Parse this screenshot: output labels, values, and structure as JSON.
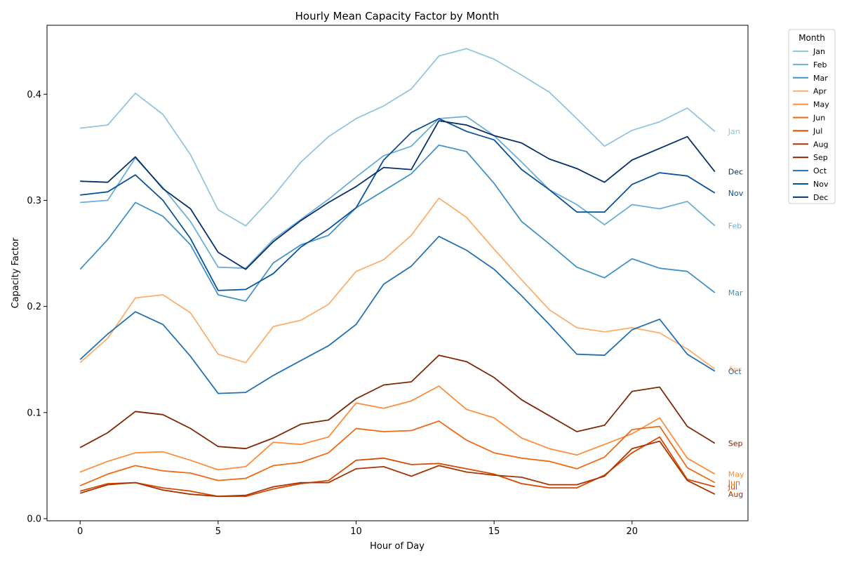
{
  "chart_data": {
    "type": "line",
    "title": "Hourly Mean Capacity Factor by Month",
    "xlabel": "Hour of Day",
    "ylabel": "Capacity Factor",
    "xlim": [
      -1.2,
      24.2
    ],
    "ylim": [
      -0.002,
      0.465
    ],
    "xticks": [
      0,
      5,
      10,
      15,
      20
    ],
    "yticks": [
      0.0,
      0.1,
      0.2,
      0.3,
      0.4
    ],
    "ytick_labels": [
      "0.0",
      "0.1",
      "0.2",
      "0.3",
      "0.4"
    ],
    "legend": {
      "title": "Month",
      "placement": "outside-right-top"
    },
    "x": [
      0,
      1,
      2,
      3,
      4,
      5,
      6,
      7,
      8,
      9,
      10,
      11,
      12,
      13,
      14,
      15,
      16,
      17,
      18,
      19,
      20,
      21,
      22,
      23
    ],
    "series": [
      {
        "name": "Jan",
        "end_label": "Jan",
        "color": "#92c5de",
        "values": [
          0.368,
          0.371,
          0.401,
          0.381,
          0.343,
          0.291,
          0.276,
          0.304,
          0.336,
          0.36,
          0.377,
          0.389,
          0.405,
          0.436,
          0.443,
          0.433,
          0.418,
          0.402,
          0.377,
          0.351,
          0.366,
          0.374,
          0.387,
          0.365
        ]
      },
      {
        "name": "Feb",
        "end_label": "Feb",
        "color": "#6baed6",
        "values": [
          0.298,
          0.3,
          0.34,
          0.312,
          0.28,
          0.237,
          0.236,
          0.263,
          0.282,
          0.301,
          0.322,
          0.342,
          0.351,
          0.377,
          0.379,
          0.361,
          0.336,
          0.31,
          0.296,
          0.277,
          0.296,
          0.292,
          0.299,
          0.276
        ]
      },
      {
        "name": "Mar",
        "end_label": "Mar",
        "color": "#4292c6",
        "values": [
          0.235,
          0.263,
          0.298,
          0.285,
          0.258,
          0.211,
          0.205,
          0.241,
          0.258,
          0.267,
          0.293,
          0.309,
          0.325,
          0.352,
          0.346,
          0.316,
          0.28,
          0.259,
          0.237,
          0.227,
          0.245,
          0.236,
          0.233,
          0.213
        ]
      },
      {
        "name": "Apr",
        "end_label": "Apr",
        "color": "#fdae6b",
        "values": [
          0.147,
          0.17,
          0.208,
          0.211,
          0.194,
          0.155,
          0.147,
          0.181,
          0.187,
          0.202,
          0.233,
          0.244,
          0.267,
          0.302,
          0.284,
          0.254,
          0.225,
          0.197,
          0.18,
          0.176,
          0.18,
          0.175,
          0.16,
          0.141
        ]
      },
      {
        "name": "May",
        "end_label": "May",
        "color": "#fd8d3c",
        "values": [
          0.044,
          0.054,
          0.062,
          0.063,
          0.055,
          0.046,
          0.049,
          0.072,
          0.07,
          0.077,
          0.109,
          0.104,
          0.111,
          0.125,
          0.103,
          0.095,
          0.076,
          0.066,
          0.06,
          0.07,
          0.08,
          0.095,
          0.057,
          0.042
        ]
      },
      {
        "name": "Jun",
        "end_label": "Jun",
        "color": "#f16913",
        "values": [
          0.031,
          0.042,
          0.05,
          0.045,
          0.043,
          0.036,
          0.038,
          0.05,
          0.053,
          0.062,
          0.085,
          0.082,
          0.083,
          0.092,
          0.074,
          0.062,
          0.057,
          0.054,
          0.047,
          0.058,
          0.084,
          0.087,
          0.048,
          0.034
        ]
      },
      {
        "name": "Jul",
        "end_label": "Jul",
        "color": "#d94801",
        "values": [
          0.026,
          0.033,
          0.034,
          0.029,
          0.026,
          0.021,
          0.021,
          0.028,
          0.033,
          0.036,
          0.055,
          0.057,
          0.051,
          0.052,
          0.047,
          0.042,
          0.033,
          0.029,
          0.029,
          0.041,
          0.062,
          0.077,
          0.037,
          0.03
        ]
      },
      {
        "name": "Aug",
        "end_label": "Aug",
        "color": "#a63603",
        "values": [
          0.024,
          0.032,
          0.034,
          0.027,
          0.023,
          0.021,
          0.022,
          0.03,
          0.034,
          0.034,
          0.047,
          0.049,
          0.04,
          0.05,
          0.044,
          0.041,
          0.039,
          0.032,
          0.032,
          0.04,
          0.066,
          0.073,
          0.036,
          0.023
        ]
      },
      {
        "name": "Sep",
        "end_label": "Sep",
        "color": "#7f2704",
        "values": [
          0.067,
          0.081,
          0.101,
          0.098,
          0.085,
          0.068,
          0.066,
          0.076,
          0.089,
          0.093,
          0.113,
          0.126,
          0.129,
          0.154,
          0.148,
          0.133,
          0.112,
          0.097,
          0.082,
          0.088,
          0.12,
          0.124,
          0.087,
          0.071
        ]
      },
      {
        "name": "Oct",
        "end_label": "Oct",
        "color": "#2171b5",
        "values": [
          0.15,
          0.174,
          0.195,
          0.183,
          0.153,
          0.118,
          0.119,
          0.135,
          0.149,
          0.163,
          0.183,
          0.221,
          0.238,
          0.266,
          0.253,
          0.235,
          0.21,
          0.183,
          0.155,
          0.154,
          0.178,
          0.188,
          0.155,
          0.139
        ]
      },
      {
        "name": "Nov",
        "end_label": "Nov",
        "color": "#08519c",
        "values": [
          0.305,
          0.308,
          0.324,
          0.3,
          0.264,
          0.215,
          0.216,
          0.231,
          0.256,
          0.273,
          0.293,
          0.338,
          0.364,
          0.377,
          0.365,
          0.357,
          0.329,
          0.31,
          0.289,
          0.289,
          0.315,
          0.326,
          0.323,
          0.307
        ]
      },
      {
        "name": "Dec",
        "end_label": "Dec",
        "color": "#08306b",
        "values": [
          0.318,
          0.317,
          0.341,
          0.311,
          0.292,
          0.251,
          0.235,
          0.261,
          0.281,
          0.298,
          0.313,
          0.331,
          0.329,
          0.375,
          0.371,
          0.361,
          0.354,
          0.339,
          0.33,
          0.317,
          0.338,
          0.349,
          0.36,
          0.327
        ]
      }
    ]
  }
}
